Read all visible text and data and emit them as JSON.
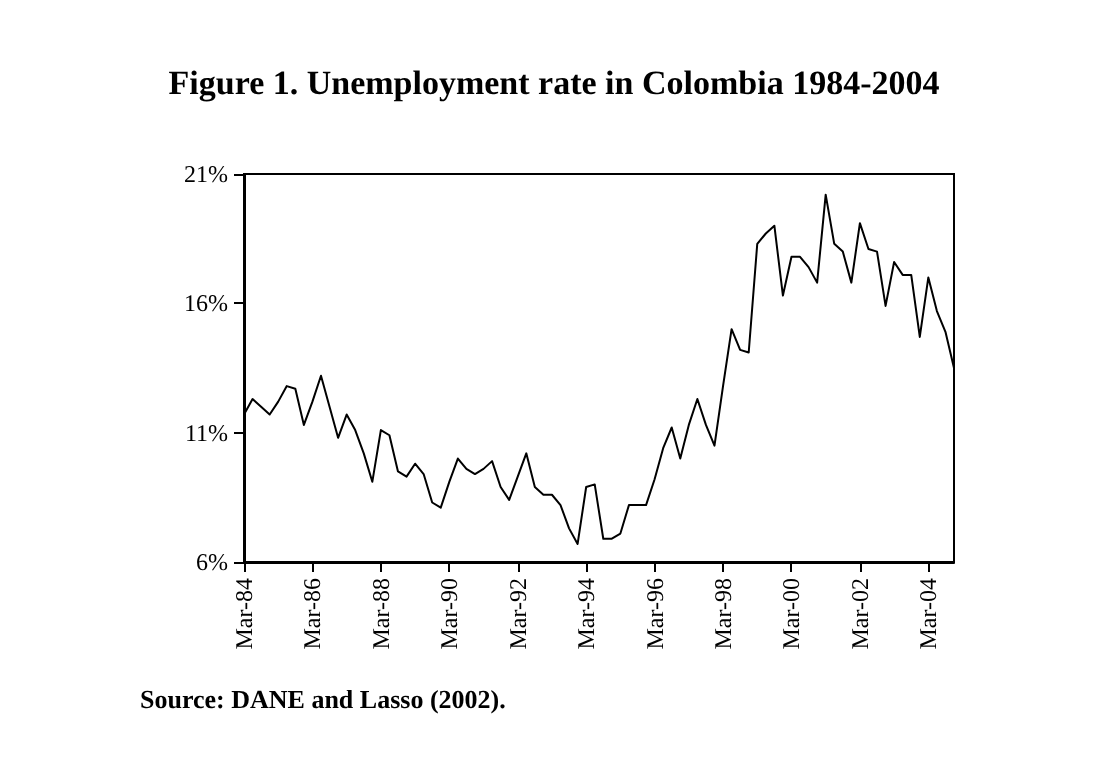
{
  "chart_data": {
    "type": "line",
    "title": "Figure 1. Unemployment rate in Colombia 1984-2004",
    "categories": [
      "Mar-84",
      null,
      null,
      null,
      null,
      null,
      null,
      null,
      "Mar-86",
      null,
      null,
      null,
      null,
      null,
      null,
      null,
      "Mar-88",
      null,
      null,
      null,
      null,
      null,
      null,
      null,
      "Mar-90",
      null,
      null,
      null,
      null,
      null,
      null,
      null,
      "Mar-92",
      null,
      null,
      null,
      null,
      null,
      null,
      null,
      "Mar-94",
      null,
      null,
      null,
      null,
      null,
      null,
      null,
      "Mar-96",
      null,
      null,
      null,
      null,
      null,
      null,
      null,
      "Mar-98",
      null,
      null,
      null,
      null,
      null,
      null,
      null,
      "Mar-00",
      null,
      null,
      null,
      null,
      null,
      null,
      null,
      "Mar-02",
      null,
      null,
      null,
      null,
      null,
      null,
      null,
      "Mar-04",
      null,
      null,
      null
    ],
    "series": [
      {
        "color": "#000000",
        "values": [
          11.7,
          12.3,
          12.0,
          11.7,
          12.2,
          12.8,
          12.7,
          11.3,
          12.2,
          13.2,
          12.0,
          10.8,
          11.7,
          11.1,
          10.2,
          9.1,
          11.1,
          10.9,
          9.5,
          9.3,
          9.8,
          9.4,
          8.3,
          8.1,
          9.1,
          10.0,
          9.6,
          9.4,
          9.6,
          9.9,
          8.9,
          8.4,
          9.3,
          10.2,
          8.9,
          8.6,
          8.6,
          8.2,
          7.3,
          6.7,
          8.9,
          9.0,
          6.9,
          6.9,
          7.1,
          8.2,
          8.2,
          8.2,
          9.2,
          10.4,
          11.2,
          10.0,
          11.3,
          12.3,
          11.3,
          10.5,
          12.8,
          15.0,
          14.2,
          14.1,
          18.3,
          18.7,
          19.0,
          16.3,
          17.8,
          17.8,
          17.4,
          16.8,
          20.2,
          18.3,
          18.0,
          16.8,
          19.1,
          18.1,
          18.0,
          15.9,
          17.6,
          17.1,
          17.1,
          14.7,
          17.0,
          15.7,
          14.9,
          13.5
        ]
      }
    ],
    "ylim": [
      6,
      21
    ],
    "yticks": [
      {
        "value": 6,
        "label": "6%"
      },
      {
        "value": 11,
        "label": "11%"
      },
      {
        "value": 16,
        "label": "16%"
      },
      {
        "value": 21,
        "label": "21%"
      }
    ],
    "grid": false,
    "marker": "none",
    "line_style": "solid",
    "annotations": [
      "Source: DANE and Lasso (2002)."
    ]
  }
}
